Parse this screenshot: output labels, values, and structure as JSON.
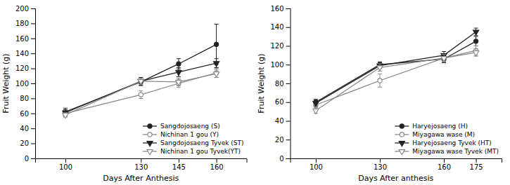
{
  "chart_data": [
    {
      "type": "line",
      "x": [
        100,
        130,
        145,
        160
      ],
      "series": [
        {
          "name": "Sangdojosaeng (S)",
          "marker": "circle",
          "color": "#222222",
          "values": [
            62,
            102,
            126,
            152
          ],
          "errors": [
            5,
            5,
            7,
            27
          ]
        },
        {
          "name": "Nichinan 1 gou (Y)",
          "marker": "circle-open",
          "color": "#888888",
          "values": [
            60,
            85,
            100,
            114
          ],
          "errors": [
            4,
            5,
            5,
            6
          ]
        },
        {
          "name": "Sangdojosaeng Tyvek (ST)",
          "marker": "triangle-down",
          "color": "#222222",
          "values": [
            61,
            103,
            115,
            127
          ],
          "errors": [
            4,
            5,
            6,
            6
          ]
        },
        {
          "name": "Nichinan 1 gou Tyvek(YT)",
          "marker": "triangle-down-open",
          "color": "#888888",
          "values": [
            58,
            103,
            102,
            113
          ],
          "errors": [
            3,
            4,
            5,
            5
          ]
        }
      ],
      "x_label": "Days After Anthesis",
      "y_label": "Fruit Weight (g)",
      "xlim": [
        88,
        172
      ],
      "xticks": [
        100,
        130,
        145,
        160
      ],
      "ylim": [
        0,
        200
      ],
      "yticks": [
        0,
        20,
        40,
        60,
        80,
        100,
        120,
        140,
        160,
        180,
        200
      ],
      "legend": "lower right",
      "grid": false
    },
    {
      "type": "line",
      "x": [
        100,
        130,
        160,
        175
      ],
      "series": [
        {
          "name": "Haryejosaeng (H)",
          "marker": "circle",
          "color": "#222222",
          "values": [
            60,
            100,
            106,
            125
          ],
          "errors": [
            3,
            3,
            4,
            5
          ]
        },
        {
          "name": "Miyagawa wase (M)",
          "marker": "circle-open",
          "color": "#888888",
          "values": [
            57,
            83,
            107,
            115
          ],
          "errors": [
            3,
            7,
            4,
            5
          ]
        },
        {
          "name": "Haryejosaeng Tyvek (HT)",
          "marker": "triangle-down",
          "color": "#222222",
          "values": [
            59,
            99,
            110,
            135
          ],
          "errors": [
            3,
            3,
            4,
            4
          ]
        },
        {
          "name": "Miyagawa wase Tyvek (MT)",
          "marker": "triangle-down-open",
          "color": "#888888",
          "values": [
            51,
            97,
            107,
            113
          ],
          "errors": [
            3,
            4,
            4,
            4
          ]
        }
      ],
      "x_label": "Days After anthesis",
      "y_label": "Fruit Weight (g)",
      "xlim": [
        88,
        187
      ],
      "xticks": [
        100,
        130,
        160,
        175
      ],
      "ylim": [
        0,
        160
      ],
      "yticks": [
        0,
        20,
        40,
        60,
        80,
        100,
        120,
        140,
        160
      ],
      "legend": "lower right",
      "grid": false
    }
  ]
}
